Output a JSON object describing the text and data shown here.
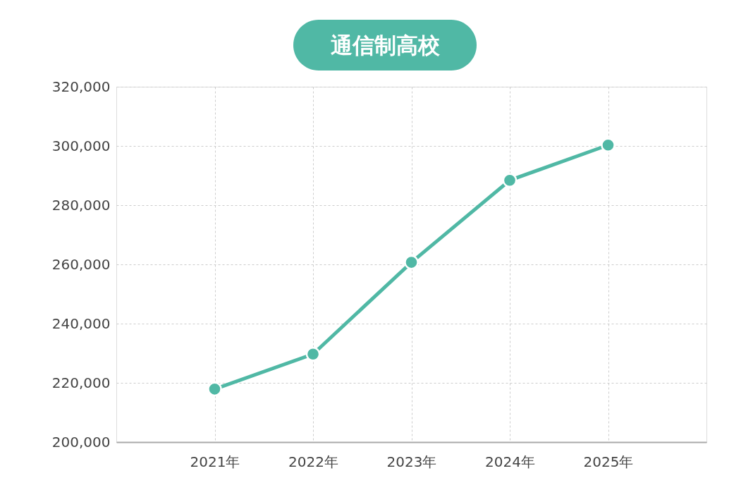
{
  "chart_data": {
    "type": "line",
    "title": "通信制高校",
    "categories": [
      "2021年",
      "2022年",
      "2023年",
      "2024年",
      "2025年"
    ],
    "series": [
      {
        "color": "#50b8a5",
        "values": [
          217900,
          229700,
          260700,
          288400,
          300300
        ]
      }
    ],
    "ylim": [
      200000,
      320000
    ],
    "yticks": [
      {
        "value": 200000,
        "label": "200,000"
      },
      {
        "value": 220000,
        "label": "220,000"
      },
      {
        "value": 240000,
        "label": "240,000"
      },
      {
        "value": 260000,
        "label": "260,000"
      },
      {
        "value": 280000,
        "label": "280,000"
      },
      {
        "value": 300000,
        "label": "300,000"
      },
      {
        "value": 320000,
        "label": "320,000"
      }
    ],
    "grid": true,
    "marker": "circle",
    "line_style": "solid"
  }
}
